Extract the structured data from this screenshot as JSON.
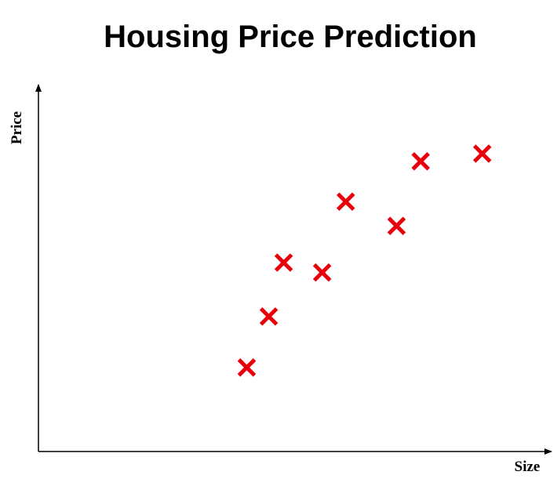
{
  "chart_data": {
    "type": "scatter",
    "title": "Housing Price Prediction",
    "xlabel": "Size",
    "ylabel": "Price",
    "marker": "x",
    "marker_color": "#e8000b",
    "axis_color": "#000000",
    "grid": false,
    "ticks": false,
    "xlim": [
      0,
      100
    ],
    "ylim": [
      0,
      100
    ],
    "points": [
      {
        "x": 40.6,
        "y": 22.9
      },
      {
        "x": 44.9,
        "y": 36.8
      },
      {
        "x": 47.8,
        "y": 51.5
      },
      {
        "x": 55.3,
        "y": 48.8
      },
      {
        "x": 59.9,
        "y": 68.1
      },
      {
        "x": 69.8,
        "y": 61.5
      },
      {
        "x": 74.5,
        "y": 79.1
      },
      {
        "x": 86.5,
        "y": 81.2
      }
    ]
  }
}
